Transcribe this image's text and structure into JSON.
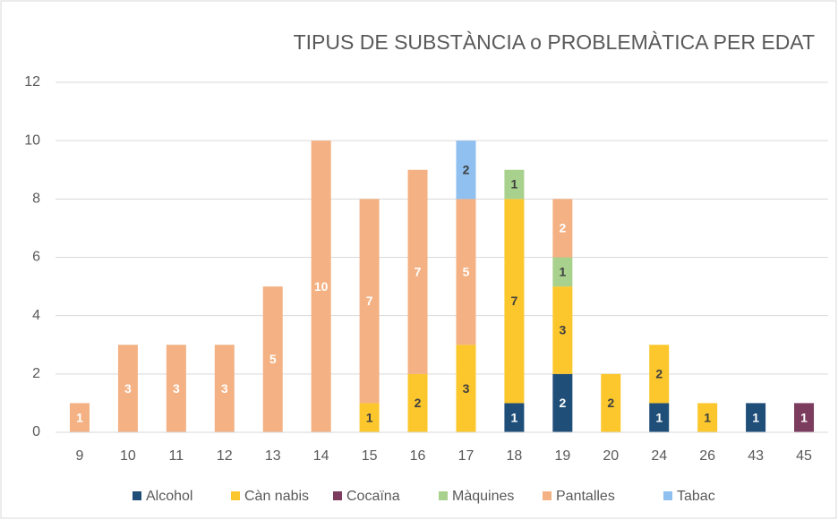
{
  "chart_data": {
    "type": "bar",
    "stacked": true,
    "title": "TIPUS DE SUBSTÀNCIA o PROBLEMÀTICA PER EDAT",
    "categories": [
      "9",
      "10",
      "11",
      "12",
      "13",
      "14",
      "15",
      "16",
      "17",
      "18",
      "19",
      "20",
      "24",
      "26",
      "43",
      "45"
    ],
    "series": [
      {
        "name": "Alcohol",
        "color": "#1f4e79",
        "label_color": "#ffffff",
        "values": [
          null,
          null,
          null,
          null,
          null,
          null,
          null,
          null,
          null,
          1,
          2,
          null,
          1,
          null,
          1,
          null
        ]
      },
      {
        "name": "Càn nabis",
        "color": "#fcc72c",
        "label_color": "#404040",
        "values": [
          null,
          null,
          null,
          null,
          null,
          null,
          1,
          2,
          3,
          7,
          3,
          2,
          2,
          1,
          null,
          null
        ]
      },
      {
        "name": "Cocaïna",
        "color": "#7c3c5e",
        "label_color": "#ffffff",
        "values": [
          null,
          null,
          null,
          null,
          null,
          null,
          null,
          null,
          null,
          null,
          null,
          null,
          null,
          null,
          null,
          1
        ]
      },
      {
        "name": "Màquines",
        "color": "#a9d18e",
        "label_color": "#404040",
        "values": [
          null,
          null,
          null,
          null,
          null,
          null,
          null,
          null,
          null,
          1,
          1,
          null,
          null,
          null,
          null,
          null
        ]
      },
      {
        "name": "Pantalles",
        "color": "#f4b183",
        "label_color": "#ffffff",
        "values": [
          1,
          3,
          3,
          3,
          5,
          10,
          7,
          7,
          5,
          null,
          2,
          null,
          null,
          null,
          null,
          null
        ]
      },
      {
        "name": "Tabac",
        "color": "#8fc0f0",
        "label_color": "#404040",
        "values": [
          null,
          null,
          null,
          null,
          null,
          null,
          null,
          null,
          2,
          null,
          null,
          null,
          null,
          null,
          null,
          null
        ]
      }
    ],
    "ylim": [
      0,
      12
    ],
    "yticks": [
      0,
      2,
      4,
      6,
      8,
      10,
      12
    ],
    "grid": true,
    "legend": "bottom"
  }
}
